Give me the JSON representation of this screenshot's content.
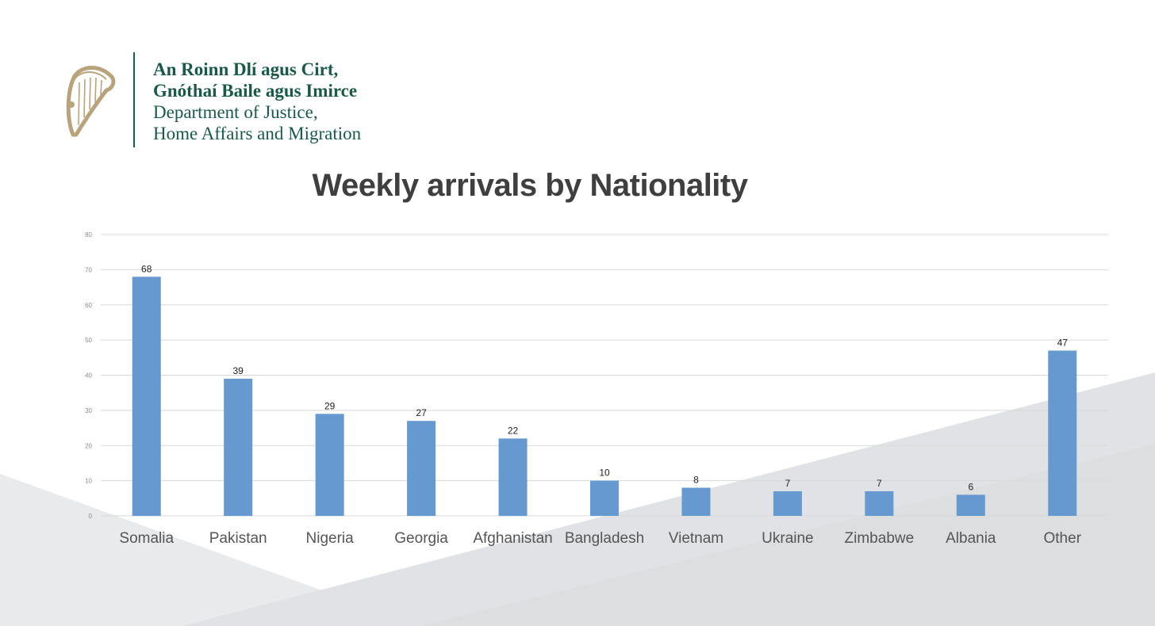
{
  "branding": {
    "irish_line_1": "An Roinn Dlí agus Cirt,",
    "irish_line_2": "Gnóthaí Baile agus Imirce",
    "english_line_1": "Department of Justice,",
    "english_line_2": "Home Affairs and Migration",
    "brand_color": "#1a5a45",
    "harp_color": "#b7a47c",
    "logo_icon": "harp-icon"
  },
  "chart_data": {
    "type": "bar",
    "title": "Weekly arrivals by Nationality",
    "categories": [
      "Somalia",
      "Pakistan",
      "Nigeria",
      "Georgia",
      "Afghanistan",
      "Bangladesh",
      "Vietnam",
      "Ukraine",
      "Zimbabwe",
      "Albania",
      "Other"
    ],
    "values": [
      68,
      39,
      29,
      27,
      22,
      10,
      8,
      7,
      7,
      6,
      47
    ],
    "data_labels": [
      "68",
      "39",
      "29",
      "27",
      "22",
      "10",
      "8",
      "7",
      "7",
      "6",
      "47"
    ],
    "y_ticks": [
      0,
      10,
      20,
      30,
      40,
      50,
      60,
      70,
      80
    ],
    "y_tick_labels": [
      "0",
      "10",
      "20",
      "30",
      "40",
      "50",
      "60",
      "70",
      "80"
    ],
    "ylim": [
      0,
      80
    ],
    "xlabel": "",
    "ylabel": "",
    "grid": true,
    "legend": "none",
    "bar_color": "#6699cf"
  }
}
